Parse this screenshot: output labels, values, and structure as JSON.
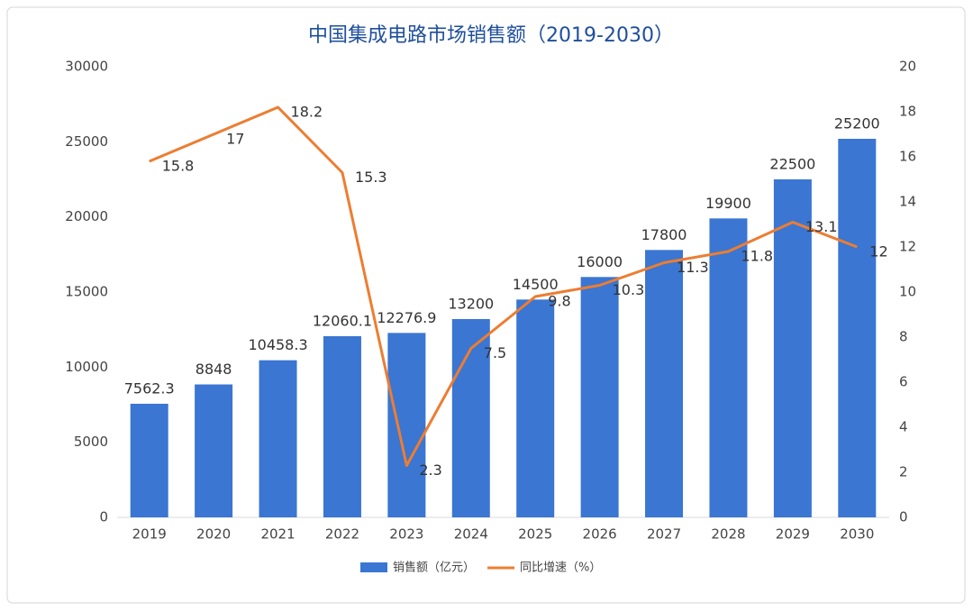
{
  "chart_data": {
    "type": "combo",
    "title": "中国集成电路市场销售额（2019-2030）",
    "categories": [
      "2019",
      "2020",
      "2021",
      "2022",
      "2023",
      "2024",
      "2025",
      "2026",
      "2027",
      "2028",
      "2029",
      "2030"
    ],
    "series": [
      {
        "name": "销售额（亿元）",
        "type": "bar",
        "color": "#3a76d2",
        "values": [
          7562.3,
          8848,
          10458.3,
          12060.1,
          12276.9,
          13200,
          14500,
          16000,
          17800,
          19900,
          22500,
          25200
        ]
      },
      {
        "name": "同比增速（%）",
        "type": "line",
        "axis": "y2",
        "color": "#ed7d31",
        "values": [
          15.8,
          17,
          18.2,
          15.3,
          2.3,
          7.5,
          9.8,
          10.3,
          11.3,
          11.8,
          13.1,
          12
        ]
      }
    ],
    "ylim": [
      0,
      30000
    ],
    "yticks": [
      0,
      5000,
      10000,
      15000,
      20000,
      25000,
      30000
    ],
    "y2lim": [
      0,
      20
    ],
    "y2ticks": [
      0,
      2,
      4,
      6,
      8,
      10,
      12,
      14,
      16,
      18,
      20
    ],
    "grid": false,
    "legend": "bottom"
  }
}
